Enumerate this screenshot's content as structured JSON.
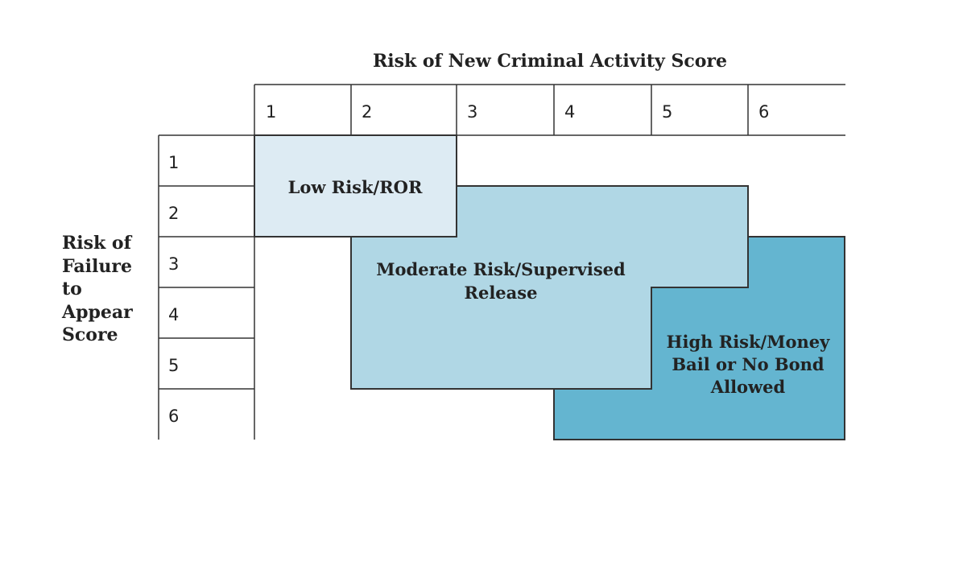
{
  "x_axis": {
    "title": "Risk of New Criminal Activity Score",
    "ticks": [
      "1",
      "2",
      "3",
      "4",
      "5",
      "6"
    ]
  },
  "y_axis": {
    "title_lines": [
      "Risk of",
      "Failure",
      "to",
      "Appear",
      "Score"
    ],
    "ticks": [
      "1",
      "2",
      "3",
      "4",
      "5",
      "6"
    ]
  },
  "regions": [
    {
      "id": "low",
      "label_lines": [
        "Low Risk/ROR"
      ],
      "color": "#ddebf3",
      "cells": "NCA 1-2 x FTA 1-2"
    },
    {
      "id": "moderate",
      "label_lines": [
        "Moderate Risk/Supervised",
        "Release"
      ],
      "color": "#b0d7e5",
      "cells": "NCA 3-5 x FTA 2-3; NCA 2-4 x FTA 3-5"
    },
    {
      "id": "high",
      "label_lines": [
        "High Risk/Money",
        "Bail or No Bond",
        "Allowed"
      ],
      "color": "#64b5d0",
      "cells": "NCA 6 x FTA 3-6; NCA 5 x FTA 4-6; NCA 4 x FTA 6"
    }
  ],
  "colors": {
    "line": "#333333",
    "text": "#222222",
    "background": "#ffffff"
  }
}
